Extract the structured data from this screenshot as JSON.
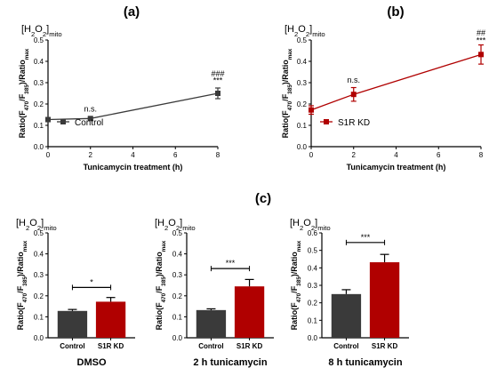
{
  "colors": {
    "control": "#3a3a3a",
    "s1r": "#b00000"
  },
  "panel_labels": [
    "(a)",
    "(b)",
    "(c)"
  ],
  "chart_data": [
    {
      "id": "a",
      "type": "line",
      "title": "(a)",
      "corner_label": {
        "base": "[H",
        "sub1": "2",
        "mid": "O",
        "sub2": "2",
        "tail": "]",
        "sub3": "mito"
      },
      "ylabel": {
        "a": "Ratio(F",
        "s1": "470",
        "b": "/F",
        "s2": "385",
        "c": ")/Ratio",
        "s3": "max"
      },
      "xlabel": "Tunicamycin treatment (h)",
      "xlim": [
        0,
        8
      ],
      "ylim": [
        0,
        0.5
      ],
      "xticks": [
        "0",
        "2",
        "4",
        "6",
        "8"
      ],
      "yticks": [
        "0.0",
        "0.1",
        "0.2",
        "0.3",
        "0.4",
        "0.5"
      ],
      "series": [
        {
          "name": "Control",
          "x": [
            0,
            2,
            8
          ],
          "y": [
            0.127,
            0.132,
            0.25
          ],
          "err": [
            0.005,
            0.005,
            0.025
          ]
        }
      ],
      "annotations": [
        {
          "x": 2,
          "y": 0.165,
          "text": "n.s."
        },
        {
          "x": 8,
          "y": 0.298,
          "text": "***"
        },
        {
          "x": 8,
          "y": 0.33,
          "text": "###"
        }
      ],
      "legend": "bottom-left"
    },
    {
      "id": "b",
      "type": "line",
      "title": "(b)",
      "corner_label": {
        "base": "[H",
        "sub1": "2",
        "mid": "O",
        "sub2": "2",
        "tail": "]",
        "sub3": "mito"
      },
      "ylabel": {
        "a": "Ratio(F",
        "s1": "470",
        "b": "/F",
        "s2": "385",
        "c": ")/Ratio",
        "s3": "max"
      },
      "xlabel": "Tunicamycin treatment (h)",
      "xlim": [
        0,
        8
      ],
      "ylim": [
        0,
        0.5
      ],
      "xticks": [
        "0",
        "2",
        "4",
        "6",
        "8"
      ],
      "yticks": [
        "0.0",
        "0.1",
        "0.2",
        "0.3",
        "0.4",
        "0.5"
      ],
      "series": [
        {
          "name": "S1R KD",
          "x": [
            0,
            2,
            8
          ],
          "y": [
            0.172,
            0.245,
            0.432
          ],
          "err": [
            0.02,
            0.032,
            0.045
          ]
        }
      ],
      "annotations": [
        {
          "x": 2,
          "y": 0.3,
          "text": "n.s."
        },
        {
          "x": 8,
          "y": 0.485,
          "text": "***"
        },
        {
          "x": 8,
          "y": 0.52,
          "text": "##"
        }
      ],
      "legend": "bottom-left"
    },
    {
      "id": "c1",
      "type": "bar",
      "corner_label": {
        "base": "[H",
        "sub1": "2",
        "mid": "O",
        "sub2": "2",
        "tail": "]",
        "sub3": "mito"
      },
      "ylabel": {
        "a": "Ratio(F",
        "s1": "470",
        "b": "/F",
        "s2": "385",
        "c": ")/Ratio",
        "s3": "max"
      },
      "xlabel": "DMSO",
      "categories": [
        "Control",
        "S1R KD"
      ],
      "values": [
        0.128,
        0.172
      ],
      "err": [
        0.007,
        0.02
      ],
      "ylim": [
        0,
        0.5
      ],
      "yticks": [
        "0.0",
        "0.1",
        "0.2",
        "0.3",
        "0.4",
        "0.5"
      ],
      "sig": {
        "text": "*",
        "y": 0.24
      }
    },
    {
      "id": "c2",
      "type": "bar",
      "corner_label": {
        "base": "[H",
        "sub1": "2",
        "mid": "O",
        "sub2": "2",
        "tail": "]",
        "sub3": "mito"
      },
      "ylabel": {
        "a": "Ratio(F",
        "s1": "470",
        "b": "/F",
        "s2": "385",
        "c": ")/Ratio",
        "s3": "max"
      },
      "xlabel": "2 h tunicamycin",
      "categories": [
        "Control",
        "S1R KD"
      ],
      "values": [
        0.132,
        0.245
      ],
      "err": [
        0.006,
        0.033
      ],
      "ylim": [
        0,
        0.5
      ],
      "yticks": [
        "0.0",
        "0.1",
        "0.2",
        "0.3",
        "0.4",
        "0.5"
      ],
      "sig": {
        "text": "***",
        "y": 0.33
      }
    },
    {
      "id": "c3",
      "type": "bar",
      "corner_label": {
        "base": "[H",
        "sub1": "2",
        "mid": "O",
        "sub2": "2",
        "tail": "]",
        "sub3": "mito"
      },
      "ylabel": {
        "a": "Ratio(F",
        "s1": "470",
        "b": "/F",
        "s2": "385",
        "c": ")/Ratio",
        "s3": "max"
      },
      "xlabel": "8 h tunicamycin",
      "categories": [
        "Control",
        "S1R KD"
      ],
      "values": [
        0.25,
        0.432
      ],
      "err": [
        0.025,
        0.045
      ],
      "ylim": [
        0,
        0.6
      ],
      "yticks": [
        "0.0",
        "0.1",
        "0.2",
        "0.3",
        "0.4",
        "0.5",
        "0.6"
      ],
      "sig": {
        "text": "***",
        "y": 0.545
      }
    }
  ]
}
